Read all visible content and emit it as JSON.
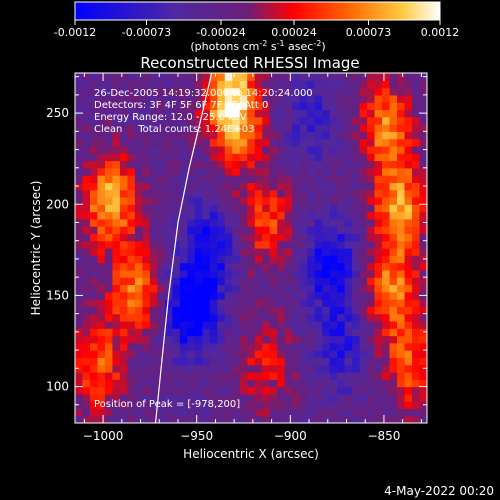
{
  "colorbar": {
    "ticks": [
      "-0.0012",
      "-0.00073",
      "-0.00024",
      "0.00024",
      "0.00073",
      "0.0012"
    ],
    "values": [
      -0.0012,
      -0.00073,
      -0.00024,
      0.00024,
      0.00073,
      0.0012
    ],
    "range": [
      -0.0012,
      0.0012
    ],
    "unit_parts": [
      "(photons cm",
      "-2",
      " s",
      "-1",
      " asec",
      "-2",
      ")"
    ]
  },
  "chart_data": {
    "type": "heatmap",
    "title": "Reconstructed RHESSI Image",
    "xlabel": "Heliocentric X (arcsec)",
    "ylabel": "Heliocentric Y (arcsec)",
    "xlim": [
      -1015,
      -827
    ],
    "ylim": [
      80,
      272
    ],
    "xticks": [
      -1000,
      -950,
      -900,
      -850
    ],
    "xtick_labels": [
      "−1000",
      "−950",
      "−900",
      "−850"
    ],
    "yticks": [
      100,
      150,
      200,
      250
    ],
    "ytick_labels": [
      "100",
      "150",
      "200",
      "250"
    ],
    "grid": false,
    "colormap": [
      "#0000ff",
      "#5028a0",
      "#6a1f7a",
      "#ff0000",
      "#ff6600",
      "#ffcc44",
      "#ffffff"
    ],
    "annotations": [
      "26-Dec-2005 14:19:32.000 to 14:20:24.000",
      "Detectors: 3F 4F 5F 6F 7F 8F, Att 0",
      "Energy Range: 12.0 - 25.0 keV",
      "Clean     Total counts: 1.24E+03"
    ],
    "peak_label": "Position of Peak = [-978,200]",
    "peak": [
      -978,
      200
    ],
    "limb_curve": [
      [
        -972,
        80
      ],
      [
        -969,
        110
      ],
      [
        -965,
        150
      ],
      [
        -960,
        190
      ],
      [
        -954,
        220
      ],
      [
        -947,
        250
      ],
      [
        -942,
        272
      ]
    ],
    "hot_spots": [
      {
        "x": -998,
        "y": 200,
        "value": 0.00115
      },
      {
        "x": -985,
        "y": 150,
        "value": 0.0009
      },
      {
        "x": -1005,
        "y": 110,
        "value": 0.0008
      },
      {
        "x": -935,
        "y": 262,
        "value": 0.0012
      },
      {
        "x": -930,
        "y": 238,
        "value": 0.0008
      },
      {
        "x": -915,
        "y": 188,
        "value": 0.0007
      },
      {
        "x": -915,
        "y": 110,
        "value": 0.0005
      },
      {
        "x": -850,
        "y": 240,
        "value": 0.001
      },
      {
        "x": -843,
        "y": 195,
        "value": 0.0011
      },
      {
        "x": -848,
        "y": 150,
        "value": 0.00095
      },
      {
        "x": -838,
        "y": 110,
        "value": 0.00075
      }
    ],
    "cold_spots": [
      {
        "x": -955,
        "y": 140,
        "value": -0.0011
      },
      {
        "x": -945,
        "y": 175,
        "value": -0.0008
      },
      {
        "x": -880,
        "y": 165,
        "value": -0.0009
      },
      {
        "x": -876,
        "y": 120,
        "value": -0.0006
      },
      {
        "x": -890,
        "y": 245,
        "value": -0.0005
      }
    ]
  },
  "footer": {
    "timestamp": "4-May-2022 00:20"
  }
}
